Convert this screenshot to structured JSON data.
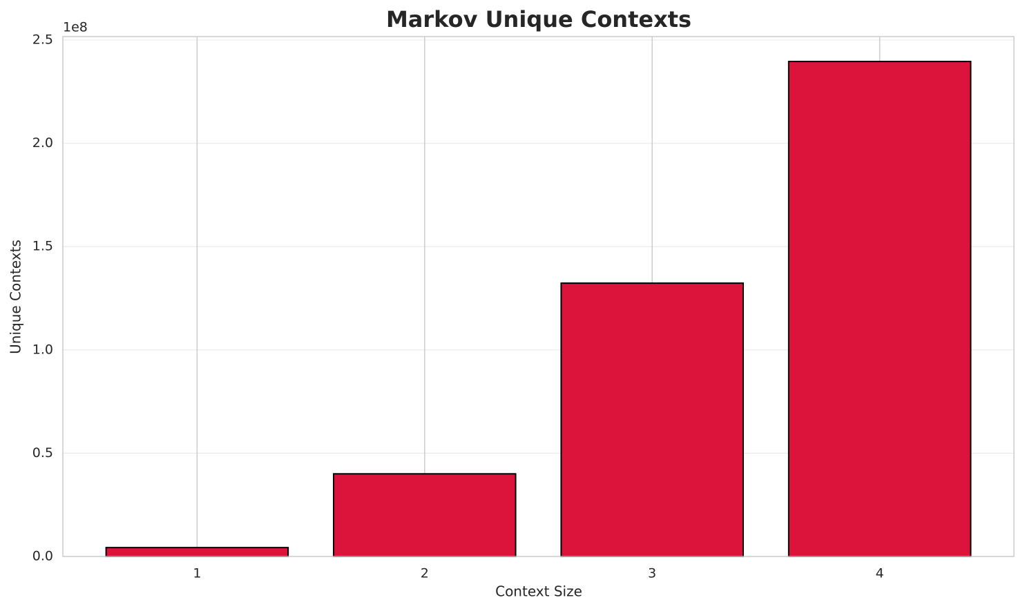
{
  "chart_data": {
    "type": "bar",
    "title": "Markov Unique Contexts",
    "x_label": "Context Size",
    "y_label": "Unique Contexts",
    "y_offset_label": "1e8",
    "categories": [
      "1",
      "2",
      "3",
      "4"
    ],
    "values": [
      4300000,
      40000000,
      132300000,
      239600000
    ],
    "color": "#dc143c",
    "edge_color": "#000000",
    "ylim": [
      0,
      251650000
    ],
    "yticks": [
      {
        "value": 0,
        "label": "0.0"
      },
      {
        "value": 50000000,
        "label": "0.5"
      },
      {
        "value": 100000000,
        "label": "1.0"
      },
      {
        "value": 150000000,
        "label": "1.5"
      },
      {
        "value": 200000000,
        "label": "2.0"
      },
      {
        "value": 250000000,
        "label": "2.5"
      }
    ],
    "grid": true
  }
}
